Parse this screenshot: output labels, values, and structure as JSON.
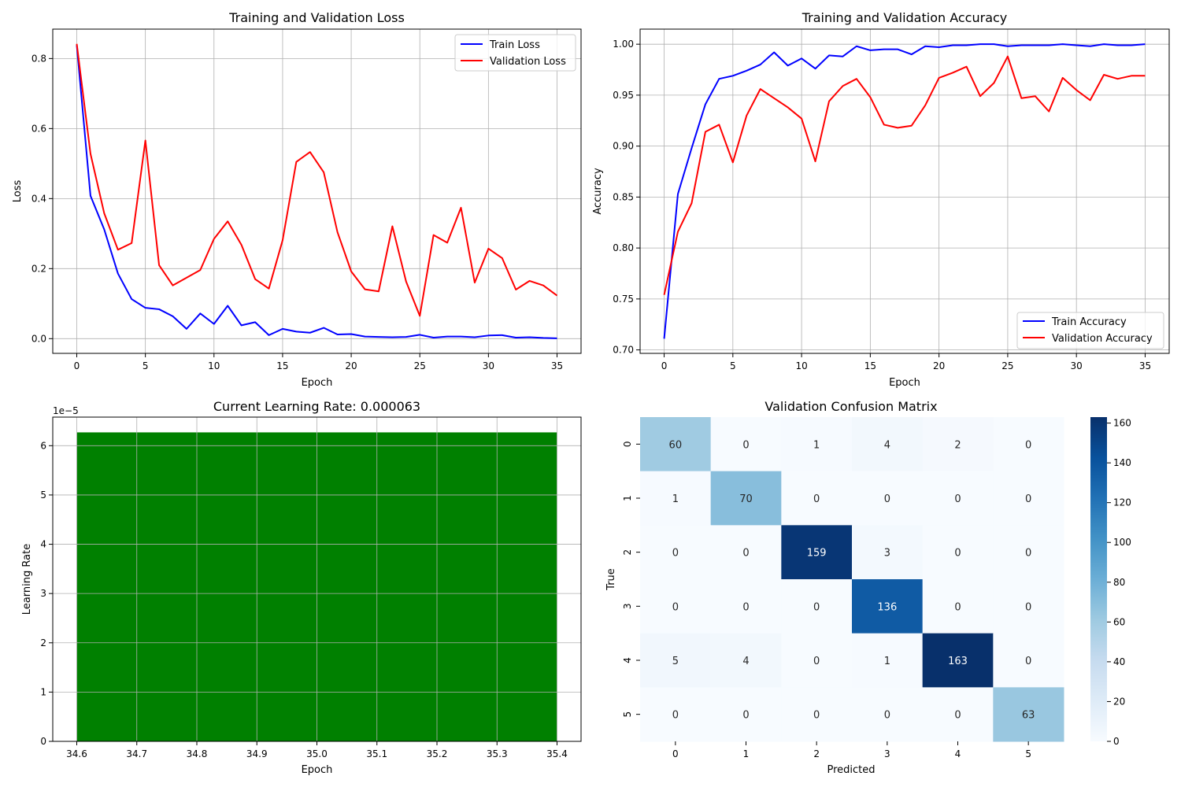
{
  "chart_data": [
    {
      "type": "line",
      "title": "Training and Validation Loss",
      "xlabel": "Epoch",
      "ylabel": "Loss",
      "xlim": [
        -1.75,
        36.75
      ],
      "ylim": [
        -0.042,
        0.884
      ],
      "xticks": [
        0,
        5,
        10,
        15,
        20,
        25,
        30,
        35
      ],
      "xtick_labels": [
        "0",
        "5",
        "10",
        "15",
        "20",
        "25",
        "30",
        "35"
      ],
      "yticks": [
        0.0,
        0.2,
        0.4,
        0.6,
        0.8
      ],
      "ytick_labels": [
        "0.0",
        "0.2",
        "0.4",
        "0.6",
        "0.8"
      ],
      "grid": true,
      "legend_position": "upper-right",
      "x": [
        0,
        1,
        2,
        3,
        4,
        5,
        6,
        7,
        8,
        9,
        10,
        11,
        12,
        13,
        14,
        15,
        16,
        17,
        18,
        19,
        20,
        21,
        22,
        23,
        24,
        25,
        26,
        27,
        28,
        29,
        30,
        31,
        32,
        33,
        34,
        35
      ],
      "series": [
        {
          "name": "Train Loss",
          "color": "#0000ff",
          "values": [
            0.838,
            0.408,
            0.312,
            0.186,
            0.113,
            0.088,
            0.084,
            0.064,
            0.028,
            0.072,
            0.042,
            0.094,
            0.038,
            0.047,
            0.01,
            0.028,
            0.02,
            0.017,
            0.031,
            0.012,
            0.013,
            0.006,
            0.005,
            0.004,
            0.005,
            0.011,
            0.003,
            0.006,
            0.006,
            0.004,
            0.009,
            0.01,
            0.003,
            0.004,
            0.002,
            0.001
          ]
        },
        {
          "name": "Validation Loss",
          "color": "#ff0000",
          "values": [
            0.842,
            0.528,
            0.358,
            0.254,
            0.273,
            0.566,
            0.21,
            0.152,
            0.174,
            0.196,
            0.285,
            0.335,
            0.268,
            0.17,
            0.143,
            0.281,
            0.505,
            0.533,
            0.475,
            0.304,
            0.192,
            0.141,
            0.135,
            0.321,
            0.163,
            0.065,
            0.296,
            0.274,
            0.374,
            0.16,
            0.257,
            0.23,
            0.14,
            0.165,
            0.152,
            0.123
          ]
        }
      ]
    },
    {
      "type": "line",
      "title": "Training and Validation Accuracy",
      "xlabel": "Epoch",
      "ylabel": "Accuracy",
      "xlim": [
        -1.75,
        36.75
      ],
      "ylim": [
        0.6966,
        1.0148
      ],
      "xticks": [
        0,
        5,
        10,
        15,
        20,
        25,
        30,
        35
      ],
      "xtick_labels": [
        "0",
        "5",
        "10",
        "15",
        "20",
        "25",
        "30",
        "35"
      ],
      "yticks": [
        0.7,
        0.75,
        0.8,
        0.85,
        0.9,
        0.95,
        1.0
      ],
      "ytick_labels": [
        "0.70",
        "0.75",
        "0.80",
        "0.85",
        "0.90",
        "0.95",
        "1.00"
      ],
      "grid": true,
      "legend_position": "lower-right",
      "x": [
        0,
        1,
        2,
        3,
        4,
        5,
        6,
        7,
        8,
        9,
        10,
        11,
        12,
        13,
        14,
        15,
        16,
        17,
        18,
        19,
        20,
        21,
        22,
        23,
        24,
        25,
        26,
        27,
        28,
        29,
        30,
        31,
        32,
        33,
        34,
        35
      ],
      "series": [
        {
          "name": "Train Accuracy",
          "color": "#0000ff",
          "values": [
            0.711,
            0.853,
            0.898,
            0.941,
            0.966,
            0.969,
            0.974,
            0.98,
            0.992,
            0.979,
            0.986,
            0.976,
            0.989,
            0.988,
            0.998,
            0.994,
            0.995,
            0.995,
            0.99,
            0.998,
            0.997,
            0.999,
            0.999,
            1.0,
            1.0,
            0.998,
            0.999,
            0.999,
            0.999,
            1.0,
            0.999,
            0.998,
            1.0,
            0.999,
            0.999,
            1.0
          ]
        },
        {
          "name": "Validation Accuracy",
          "color": "#ff0000",
          "values": [
            0.754,
            0.816,
            0.844,
            0.914,
            0.921,
            0.884,
            0.93,
            0.956,
            0.947,
            0.938,
            0.927,
            0.885,
            0.944,
            0.959,
            0.966,
            0.948,
            0.921,
            0.918,
            0.92,
            0.94,
            0.967,
            0.972,
            0.978,
            0.949,
            0.962,
            0.988,
            0.947,
            0.949,
            0.934,
            0.967,
            0.955,
            0.945,
            0.97,
            0.966,
            0.969,
            0.969
          ]
        }
      ]
    },
    {
      "type": "bar",
      "title": "Current Learning Rate: 0.000063",
      "xlabel": "Epoch",
      "ylabel": "Learning Rate",
      "offset_label": "1e−5",
      "xlim": [
        34.56,
        35.44
      ],
      "ylim": [
        0,
        6.58
      ],
      "xticks": [
        34.6,
        34.7,
        34.8,
        34.9,
        35.0,
        35.1,
        35.2,
        35.3,
        35.4
      ],
      "xtick_labels": [
        "34.6",
        "34.7",
        "34.8",
        "34.9",
        "35.0",
        "35.1",
        "35.2",
        "35.3",
        "35.4"
      ],
      "yticks": [
        0,
        1,
        2,
        3,
        4,
        5,
        6
      ],
      "ytick_labels": [
        "0",
        "1",
        "2",
        "3",
        "4",
        "5",
        "6"
      ],
      "grid": true,
      "categories": [
        35
      ],
      "values": [
        6.27
      ],
      "bar_range": [
        34.6,
        35.4
      ],
      "bar_color": "#008000",
      "value_unit": "1e-5"
    },
    {
      "type": "heatmap",
      "title": "Validation Confusion Matrix",
      "xlabel": "Predicted",
      "ylabel": "True",
      "x_labels": [
        "0",
        "1",
        "2",
        "3",
        "4",
        "5"
      ],
      "y_labels": [
        "0",
        "1",
        "2",
        "3",
        "4",
        "5"
      ],
      "values": [
        [
          60,
          0,
          1,
          4,
          2,
          0
        ],
        [
          1,
          70,
          0,
          0,
          0,
          0
        ],
        [
          0,
          0,
          159,
          3,
          0,
          0
        ],
        [
          0,
          0,
          0,
          136,
          0,
          0
        ],
        [
          5,
          4,
          0,
          1,
          163,
          0
        ],
        [
          0,
          0,
          0,
          0,
          0,
          63
        ]
      ],
      "colormap": "Blues",
      "vmin": 0,
      "vmax": 163,
      "colorbar_ticks": [
        0,
        20,
        40,
        60,
        80,
        100,
        120,
        140,
        160
      ],
      "colorbar_tick_labels": [
        "0",
        "20",
        "40",
        "60",
        "80",
        "100",
        "120",
        "140",
        "160"
      ]
    }
  ]
}
